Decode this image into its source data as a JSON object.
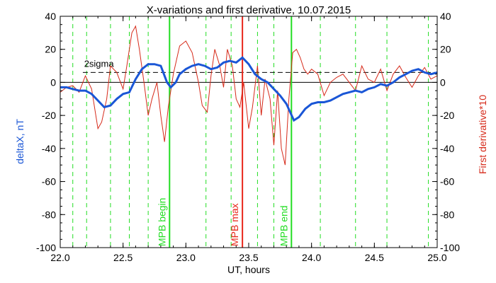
{
  "chart_data": {
    "type": "line",
    "title": "X-variations and first derivative, 10.07.2015",
    "xlabel": "UT, hours",
    "ylabel_left": "deltaX, nT",
    "ylabel_right": "First derivative*10",
    "xlim": [
      22.0,
      25.0
    ],
    "ylim": [
      -100,
      40
    ],
    "x_ticks": [
      "22.0",
      "22.5",
      "23.0",
      "23.5",
      "24.0",
      "24.5",
      "25.0"
    ],
    "y_ticks": [
      "-100",
      "-80",
      "-60",
      "-40",
      "-20",
      "0",
      "20",
      "40"
    ],
    "colors": {
      "deltaX": "#1a56d6",
      "derivative": "#d62a1a",
      "mpb_begin_end": "#22dd22",
      "mpb_max": "#e8261a",
      "dashed_markers": "#22dd22",
      "sigma_line": "#000000"
    },
    "sigma": {
      "label": "2sigma",
      "value": 6
    },
    "markers": [
      {
        "label": "MPB begin",
        "x": 22.87,
        "kind": "begin"
      },
      {
        "label": "MPB max",
        "x": 23.45,
        "kind": "max"
      },
      {
        "label": "MPB end",
        "x": 23.84,
        "kind": "end"
      }
    ],
    "dashed_lines": [
      22.1,
      22.21,
      22.4,
      22.55,
      22.7,
      23.16,
      23.36,
      23.57,
      23.7,
      24.07,
      24.35,
      24.6,
      24.93
    ],
    "series": [
      {
        "name": "deltaX",
        "x": [
          22.0,
          22.05,
          22.1,
          22.15,
          22.2,
          22.25,
          22.3,
          22.35,
          22.4,
          22.45,
          22.5,
          22.55,
          22.6,
          22.65,
          22.7,
          22.75,
          22.8,
          22.85,
          22.88,
          22.92,
          22.95,
          23.0,
          23.05,
          23.1,
          23.15,
          23.2,
          23.25,
          23.3,
          23.35,
          23.4,
          23.45,
          23.5,
          23.55,
          23.6,
          23.65,
          23.7,
          23.75,
          23.8,
          23.83,
          23.86,
          23.9,
          23.95,
          24.0,
          24.05,
          24.1,
          24.15,
          24.2,
          24.25,
          24.3,
          24.35,
          24.4,
          24.45,
          24.5,
          24.55,
          24.6,
          24.65,
          24.7,
          24.75,
          24.8,
          24.85,
          24.9,
          24.95,
          25.0
        ],
        "values": [
          -3,
          -3,
          -4,
          -5,
          -5,
          -7,
          -11,
          -15,
          -14,
          -10,
          -7,
          -6,
          2,
          8,
          11,
          11,
          10,
          0,
          -3,
          0,
          5,
          8,
          10,
          11,
          10,
          8,
          9,
          12,
          13,
          12,
          15,
          11,
          5,
          2,
          0,
          -4,
          -8,
          -13,
          -18,
          -23,
          -21,
          -16,
          -13,
          -12,
          -12,
          -11,
          -9,
          -7,
          -6,
          -5,
          -6,
          -4,
          -3,
          -1,
          -2,
          0,
          3,
          5,
          7,
          8,
          6,
          5,
          6
        ]
      },
      {
        "name": "derivative",
        "x": [
          22.0,
          22.05,
          22.1,
          22.15,
          22.2,
          22.25,
          22.3,
          22.33,
          22.37,
          22.4,
          22.45,
          22.5,
          22.53,
          22.57,
          22.6,
          22.63,
          22.67,
          22.7,
          22.73,
          22.77,
          22.8,
          22.83,
          22.86,
          22.9,
          22.95,
          23.0,
          23.05,
          23.1,
          23.13,
          23.17,
          23.2,
          23.23,
          23.27,
          23.3,
          23.33,
          23.37,
          23.4,
          23.43,
          23.46,
          23.5,
          23.53,
          23.57,
          23.6,
          23.63,
          23.67,
          23.7,
          23.73,
          23.76,
          23.79,
          23.82,
          23.85,
          23.88,
          23.91,
          23.94,
          23.97,
          24.0,
          24.05,
          24.1,
          24.15,
          24.2,
          24.25,
          24.3,
          24.35,
          24.4,
          24.45,
          24.5,
          24.55,
          24.6,
          24.65,
          24.7,
          24.75,
          24.8,
          24.85,
          24.9,
          24.95,
          25.0
        ],
        "values": [
          -6,
          -3,
          -2,
          -6,
          4,
          -4,
          -28,
          -24,
          -10,
          10,
          6,
          -4,
          10,
          30,
          34,
          20,
          -2,
          -20,
          -10,
          0,
          -20,
          -36,
          -15,
          5,
          22,
          25,
          18,
          0,
          -14,
          -18,
          4,
          20,
          10,
          -3,
          20,
          10,
          -10,
          -15,
          0,
          -28,
          -15,
          10,
          -20,
          2,
          -10,
          -38,
          -5,
          -40,
          -50,
          -10,
          18,
          20,
          15,
          8,
          5,
          8,
          5,
          -8,
          0,
          3,
          5,
          0,
          -5,
          10,
          2,
          0,
          8,
          -5,
          5,
          10,
          3,
          -3,
          4,
          9,
          2,
          4
        ]
      }
    ]
  }
}
